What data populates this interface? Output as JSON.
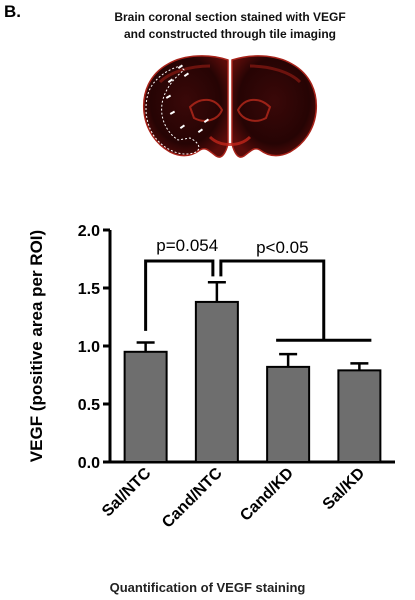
{
  "panel_label": "B.",
  "image_title": {
    "line1": "Brain coronal section stained with VEGF",
    "line2": "and constructed through tile imaging"
  },
  "image_caption": "Quantification of VEGF staining",
  "colors": {
    "bar_fill": "#6e6e6e",
    "stain": "#c0251a",
    "tissue": "#2a0606"
  },
  "chart_data": {
    "type": "bar",
    "categories": [
      "Sal/NTC",
      "Cand/NTC",
      "Cand/KD",
      "Sal/KD"
    ],
    "values": [
      0.95,
      1.38,
      0.82,
      0.79
    ],
    "errors": [
      0.08,
      0.17,
      0.11,
      0.06
    ],
    "ylabel": "VEGF (positive area per ROI)",
    "ylim": [
      0,
      2.0
    ],
    "yticks": [
      "0.0",
      "0.5",
      "1.0",
      "1.5",
      "2.0"
    ],
    "grid": false,
    "annotations": [
      {
        "text": "p=0.054",
        "compares": [
          "Sal/NTC",
          "Cand/NTC"
        ]
      },
      {
        "text": "p<0.05",
        "compares": [
          "Cand/NTC",
          "Cand/KD + Sal/KD"
        ]
      }
    ]
  }
}
